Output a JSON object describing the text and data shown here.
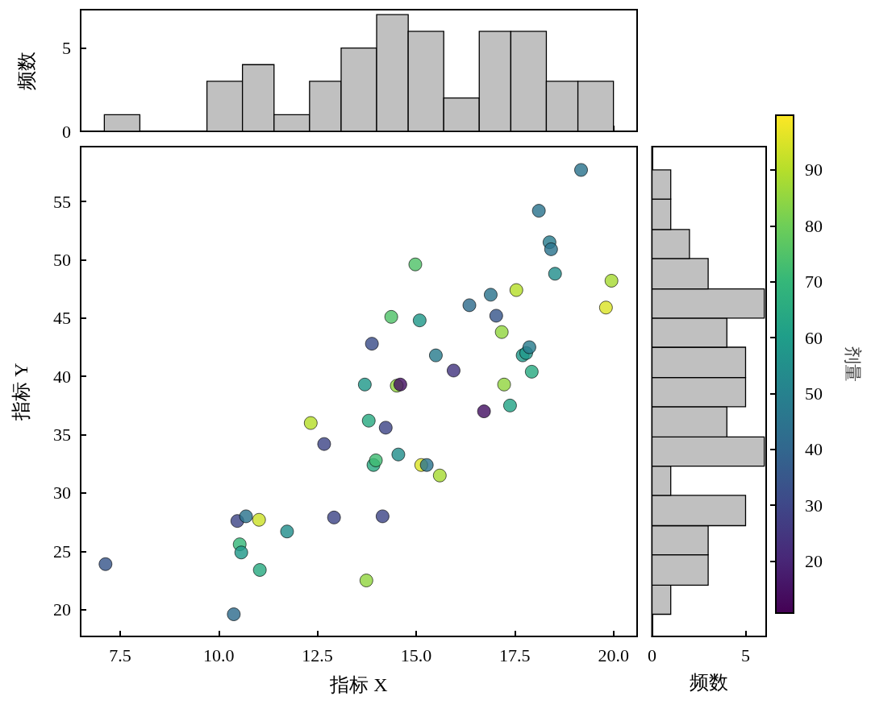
{
  "chart_data": [
    {
      "type": "histogram",
      "bins": [
        7.1,
        8.0,
        9.7,
        10.6,
        11.4,
        12.3,
        13.1,
        14.0,
        14.8,
        15.7,
        16.6,
        17.4,
        18.3,
        19.1,
        20.0
      ],
      "values": [
        1,
        0,
        3,
        4,
        1,
        3,
        5,
        7,
        6,
        2,
        6,
        6,
        3,
        3
      ],
      "color": "#c0c0c0",
      "xlim": [
        6.5,
        20.6
      ],
      "xticks": [
        7.5,
        10,
        12.5,
        15,
        17.5,
        20
      ],
      "ylim": [
        0,
        7.3
      ],
      "yticks": [
        0,
        5
      ],
      "ylabel": "频数",
      "tick_labels": "y",
      "grid": false
    },
    {
      "type": "scatter",
      "xlabel": "指标 X",
      "ylabel": "指标 Y",
      "clabel": "剂量",
      "marker": "circle",
      "grid": false,
      "x": [
        7.13,
        10.38,
        10.47,
        10.69,
        11.02,
        10.53,
        10.57,
        11.04,
        11.73,
        12.33,
        12.67,
        12.92,
        14.15,
        13.74,
        13.88,
        13.7,
        13.8,
        14.23,
        13.92,
        13.98,
        14.55,
        14.37,
        14.51,
        14.6,
        14.98,
        15.09,
        15.13,
        15.27,
        15.6,
        15.5,
        15.95,
        16.35,
        16.89,
        16.72,
        17.03,
        17.54,
        17.17,
        17.23,
        17.38,
        17.7,
        17.79,
        17.87,
        17.93,
        18.11,
        18.38,
        18.42,
        18.52,
        19.18,
        19.95,
        19.81
      ],
      "values": [
        23.9,
        19.6,
        27.6,
        28.0,
        27.7,
        25.6,
        24.9,
        23.4,
        26.7,
        36.0,
        34.2,
        27.9,
        28.0,
        22.5,
        42.8,
        39.3,
        36.2,
        35.6,
        32.4,
        32.8,
        33.3,
        45.1,
        39.2,
        39.3,
        49.6,
        44.8,
        32.4,
        32.4,
        31.5,
        41.8,
        40.5,
        46.1,
        47.0,
        37.0,
        45.2,
        47.4,
        43.8,
        39.3,
        37.5,
        41.8,
        42.0,
        42.5,
        40.4,
        54.2,
        51.5,
        50.9,
        48.8,
        57.7,
        48.2,
        45.9
      ],
      "cvalues": [
        35,
        42,
        30,
        45,
        93,
        70,
        58,
        65,
        55,
        90,
        30,
        30,
        30,
        85,
        32,
        58,
        65,
        30,
        65,
        72,
        55,
        75,
        85,
        15,
        75,
        58,
        95,
        45,
        88,
        48,
        25,
        42,
        45,
        15,
        35,
        90,
        85,
        85,
        62,
        58,
        58,
        48,
        65,
        45,
        48,
        45,
        55,
        45,
        88,
        95
      ],
      "xlim": [
        6.5,
        20.6
      ],
      "xticks": [
        7.5,
        {
          "value": 10,
          "label": "10.0"
        },
        12.5,
        {
          "value": 15,
          "label": "15.0"
        },
        17.5,
        {
          "value": 20,
          "label": "20.0"
        }
      ],
      "ylim": [
        17.7,
        59.7
      ],
      "yticks": [
        20,
        25,
        30,
        35,
        40,
        45,
        50,
        55
      ],
      "clim": [
        10.7,
        99.8
      ],
      "cticks": [
        20,
        30,
        40,
        50,
        60,
        70,
        80,
        90
      ]
    },
    {
      "type": "histogram",
      "orientation": "horizontal",
      "bins": [
        19.6,
        22.1,
        24.7,
        27.2,
        29.8,
        32.3,
        34.8,
        37.4,
        39.9,
        42.5,
        45.0,
        47.5,
        50.1,
        52.6,
        55.2,
        57.7
      ],
      "values": [
        1,
        3,
        3,
        5,
        1,
        6,
        4,
        5,
        5,
        4,
        6,
        3,
        2,
        1,
        1
      ],
      "color": "#c0c0c0",
      "xlim": [
        0,
        6.1
      ],
      "xticks": [
        0,
        5
      ],
      "ylim": [
        17.7,
        59.7
      ],
      "yticks": [
        20,
        25,
        30,
        35,
        40,
        45,
        50,
        55
      ],
      "xlabel": "频数",
      "tick_labels": "x",
      "grid": false
    }
  ]
}
